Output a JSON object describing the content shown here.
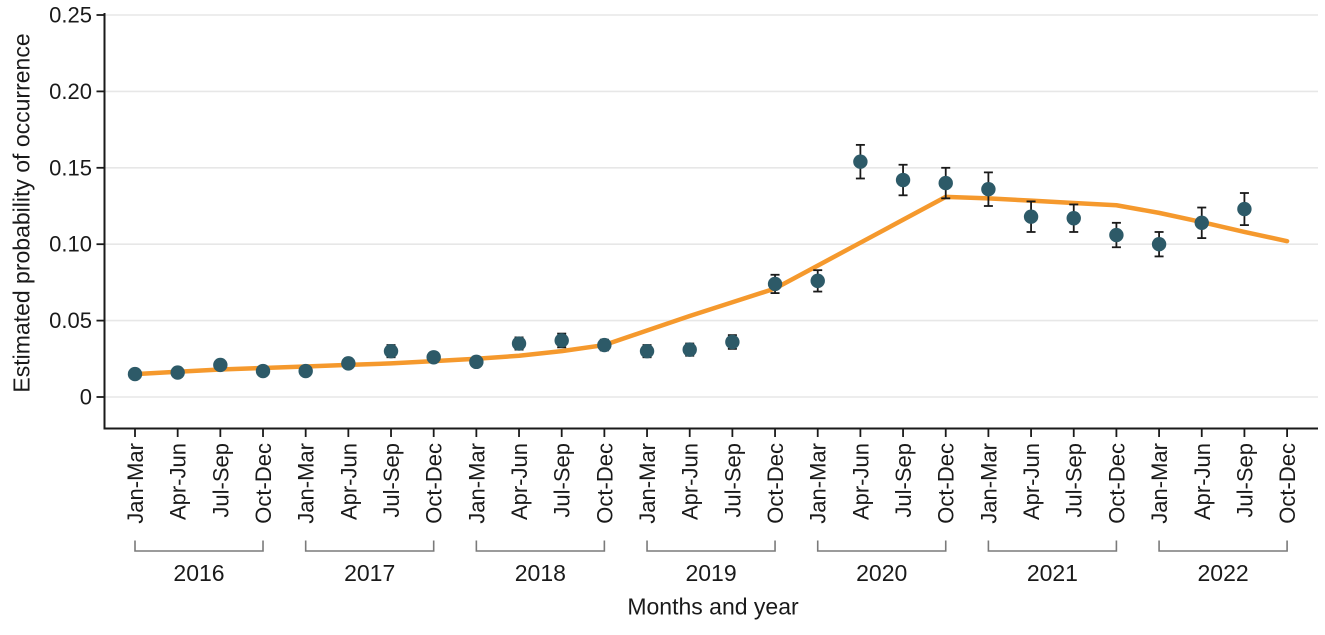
{
  "figure": {
    "title": "",
    "y_axis_title": "Estimated probability of occurrence",
    "x_axis_title": "Months and year"
  },
  "chart_data": {
    "type": "scatter",
    "title": "",
    "xlabel": "Months and year",
    "ylabel": "Estimated probability of occurrence",
    "ylim": [
      0,
      0.25
    ],
    "grid": "horizontal",
    "legend": "none",
    "y_ticks": [
      0,
      0.05,
      0.1,
      0.15,
      0.2,
      0.25
    ],
    "y_tick_labels": [
      "0",
      "0.05",
      "0.10",
      "0.15",
      "0.20",
      "0.25"
    ],
    "quarter_labels": [
      "Jan-Mar",
      "Apr-Jun",
      "Jul-Sep",
      "Oct-Dec"
    ],
    "years": [
      "2016",
      "2017",
      "2018",
      "2019",
      "2020",
      "2021",
      "2022"
    ],
    "n_quarters": 28,
    "points": [
      {
        "quarter": "Jan-Mar",
        "year": "2016",
        "value": 0.015,
        "ci": 0.002
      },
      {
        "quarter": "Apr-Jun",
        "year": "2016",
        "value": 0.016,
        "ci": 0.002
      },
      {
        "quarter": "Jul-Sep",
        "year": "2016",
        "value": 0.021,
        "ci": 0.0025
      },
      {
        "quarter": "Oct-Dec",
        "year": "2016",
        "value": 0.017,
        "ci": 0.002
      },
      {
        "quarter": "Jan-Mar",
        "year": "2017",
        "value": 0.017,
        "ci": 0.002
      },
      {
        "quarter": "Apr-Jun",
        "year": "2017",
        "value": 0.022,
        "ci": 0.0025
      },
      {
        "quarter": "Jul-Sep",
        "year": "2017",
        "value": 0.03,
        "ci": 0.004
      },
      {
        "quarter": "Oct-Dec",
        "year": "2017",
        "value": 0.026,
        "ci": 0.003
      },
      {
        "quarter": "Jan-Mar",
        "year": "2018",
        "value": 0.023,
        "ci": 0.003
      },
      {
        "quarter": "Apr-Jun",
        "year": "2018",
        "value": 0.035,
        "ci": 0.004
      },
      {
        "quarter": "Jul-Sep",
        "year": "2018",
        "value": 0.037,
        "ci": 0.0045
      },
      {
        "quarter": "Oct-Dec",
        "year": "2018",
        "value": 0.034,
        "ci": 0.0035
      },
      {
        "quarter": "Jan-Mar",
        "year": "2019",
        "value": 0.03,
        "ci": 0.004
      },
      {
        "quarter": "Apr-Jun",
        "year": "2019",
        "value": 0.031,
        "ci": 0.004
      },
      {
        "quarter": "Jul-Sep",
        "year": "2019",
        "value": 0.036,
        "ci": 0.0045
      },
      {
        "quarter": "Oct-Dec",
        "year": "2019",
        "value": 0.074,
        "ci": 0.006
      },
      {
        "quarter": "Jan-Mar",
        "year": "2020",
        "value": 0.076,
        "ci": 0.007
      },
      {
        "quarter": "Apr-Jun",
        "year": "2020",
        "value": 0.154,
        "ci": 0.011
      },
      {
        "quarter": "Jul-Sep",
        "year": "2020",
        "value": 0.142,
        "ci": 0.01
      },
      {
        "quarter": "Oct-Dec",
        "year": "2020",
        "value": 0.14,
        "ci": 0.01
      },
      {
        "quarter": "Jan-Mar",
        "year": "2021",
        "value": 0.136,
        "ci": 0.011
      },
      {
        "quarter": "Apr-Jun",
        "year": "2021",
        "value": 0.118,
        "ci": 0.01
      },
      {
        "quarter": "Jul-Sep",
        "year": "2021",
        "value": 0.117,
        "ci": 0.009
      },
      {
        "quarter": "Oct-Dec",
        "year": "2021",
        "value": 0.106,
        "ci": 0.008
      },
      {
        "quarter": "Jan-Mar",
        "year": "2022",
        "value": 0.1,
        "ci": 0.008
      },
      {
        "quarter": "Apr-Jun",
        "year": "2022",
        "value": 0.114,
        "ci": 0.01
      },
      {
        "quarter": "Jul-Sep",
        "year": "2022",
        "value": 0.123,
        "ci": 0.0105
      }
    ],
    "trend_line": {
      "name": "smoothed-trend",
      "values": [
        0.015,
        0.0165,
        0.018,
        0.019,
        0.02,
        0.021,
        0.022,
        0.0235,
        0.025,
        0.027,
        0.03,
        0.034,
        0.0435,
        0.053,
        0.062,
        0.071,
        0.086,
        0.101,
        0.116,
        0.131,
        0.13,
        0.1285,
        0.127,
        0.1255,
        0.1205,
        0.1145,
        0.108,
        0.102
      ]
    },
    "colors": {
      "point": "#2D5A68",
      "trend": "#F5992D",
      "error_bar": "#1a1a1a",
      "grid": "#E7E7E7",
      "axis": "#1A1A1A",
      "bracket": "#7A7A7A",
      "text": "#1A1A1A"
    }
  }
}
